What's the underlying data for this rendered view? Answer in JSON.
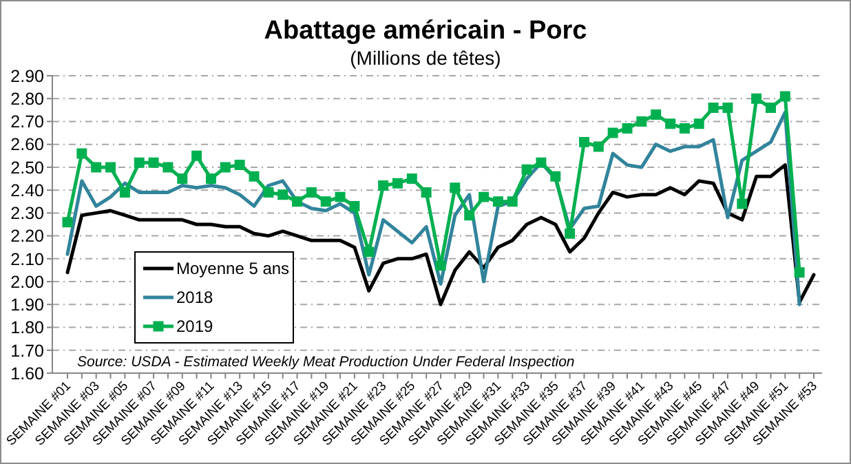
{
  "chart_data": {
    "type": "line",
    "title": "Abattage américain - Porc",
    "subtitle": "(Millions de têtes)",
    "categories": [
      "SEMAINE #01",
      null,
      "SEMAINE #03",
      null,
      "SEMAINE #05",
      null,
      "SEMAINE #07",
      null,
      "SEMAINE #09",
      null,
      "SEMAINE #11",
      null,
      "SEMAINE #13",
      null,
      "SEMAINE #15",
      null,
      "SEMAINE #17",
      null,
      "SEMAINE #19",
      null,
      "SEMAINE #21",
      null,
      "SEMAINE #23",
      null,
      "SEMAINE #25",
      null,
      "SEMAINE #27",
      null,
      "SEMAINE #29",
      null,
      "SEMAINE #31",
      null,
      "SEMAINE #33",
      null,
      "SEMAINE #35",
      null,
      "SEMAINE #37",
      null,
      "SEMAINE #39",
      null,
      "SEMAINE #41",
      null,
      "SEMAINE #43",
      null,
      "SEMAINE #45",
      null,
      "SEMAINE #47",
      null,
      "SEMAINE #49",
      null,
      "SEMAINE #51",
      null,
      "SEMAINE #53"
    ],
    "series": [
      {
        "name": "Moyenne 5 ans",
        "color": "#000000",
        "marker": "none",
        "values": [
          2.04,
          2.29,
          2.3,
          2.31,
          2.29,
          2.27,
          2.27,
          2.27,
          2.27,
          2.25,
          2.25,
          2.24,
          2.24,
          2.21,
          2.2,
          2.22,
          2.2,
          2.18,
          2.18,
          2.18,
          2.15,
          1.96,
          2.08,
          2.1,
          2.1,
          2.12,
          1.9,
          2.05,
          2.13,
          2.06,
          2.15,
          2.18,
          2.25,
          2.28,
          2.25,
          2.13,
          2.19,
          2.3,
          2.39,
          2.37,
          2.38,
          2.38,
          2.41,
          2.38,
          2.44,
          2.43,
          2.3,
          2.27,
          2.46,
          2.46,
          2.51,
          1.91,
          2.03
        ]
      },
      {
        "name": "2018",
        "color": "#31849b",
        "marker": "none",
        "values": [
          2.12,
          2.44,
          2.33,
          2.37,
          2.43,
          2.39,
          2.39,
          2.39,
          2.42,
          2.41,
          2.42,
          2.41,
          2.38,
          2.33,
          2.42,
          2.44,
          2.35,
          2.32,
          2.31,
          2.34,
          2.3,
          2.03,
          2.27,
          2.22,
          2.17,
          2.24,
          1.99,
          2.29,
          2.38,
          2.0,
          2.33,
          2.35,
          2.45,
          2.52,
          2.45,
          2.23,
          2.32,
          2.33,
          2.56,
          2.51,
          2.5,
          2.6,
          2.57,
          2.59,
          2.59,
          2.62,
          2.28,
          2.53,
          2.57,
          2.61,
          2.74,
          1.9,
          null
        ]
      },
      {
        "name": "2019",
        "color": "#00b050",
        "marker": "square",
        "values": [
          2.26,
          2.56,
          2.5,
          2.5,
          2.39,
          2.52,
          2.52,
          2.5,
          2.45,
          2.55,
          2.45,
          2.5,
          2.51,
          2.46,
          2.39,
          2.38,
          2.35,
          2.39,
          2.35,
          2.37,
          2.33,
          2.13,
          2.42,
          2.43,
          2.45,
          2.39,
          2.07,
          2.41,
          2.29,
          2.37,
          2.35,
          2.35,
          2.49,
          2.52,
          2.46,
          2.21,
          2.61,
          2.59,
          2.65,
          2.67,
          2.7,
          2.73,
          2.69,
          2.67,
          2.69,
          2.76,
          2.76,
          2.34,
          2.8,
          2.76,
          2.81,
          2.04,
          null
        ]
      }
    ],
    "ylim": [
      1.6,
      2.9
    ],
    "yticks": [
      {
        "value": 1.6,
        "label": "1.60"
      },
      {
        "value": 1.7,
        "label": "1.70"
      },
      {
        "value": 1.8,
        "label": "1.80"
      },
      {
        "value": 1.9,
        "label": "1.90"
      },
      {
        "value": 2.0,
        "label": "2.00"
      },
      {
        "value": 2.1,
        "label": "2.10"
      },
      {
        "value": 2.2,
        "label": "2.20"
      },
      {
        "value": 2.3,
        "label": "2.30"
      },
      {
        "value": 2.4,
        "label": "2.40"
      },
      {
        "value": 2.5,
        "label": "2.50"
      },
      {
        "value": 2.6,
        "label": "2.60"
      },
      {
        "value": 2.7,
        "label": "2.70"
      },
      {
        "value": 2.8,
        "label": "2.80"
      },
      {
        "value": 2.9,
        "label": "2.90"
      }
    ],
    "grid": "y",
    "legend": "bottom left",
    "line_style": "solid",
    "annotations": [
      "Source: USDA - Estimated Weekly Meat Production Under Federal Inspection"
    ]
  }
}
